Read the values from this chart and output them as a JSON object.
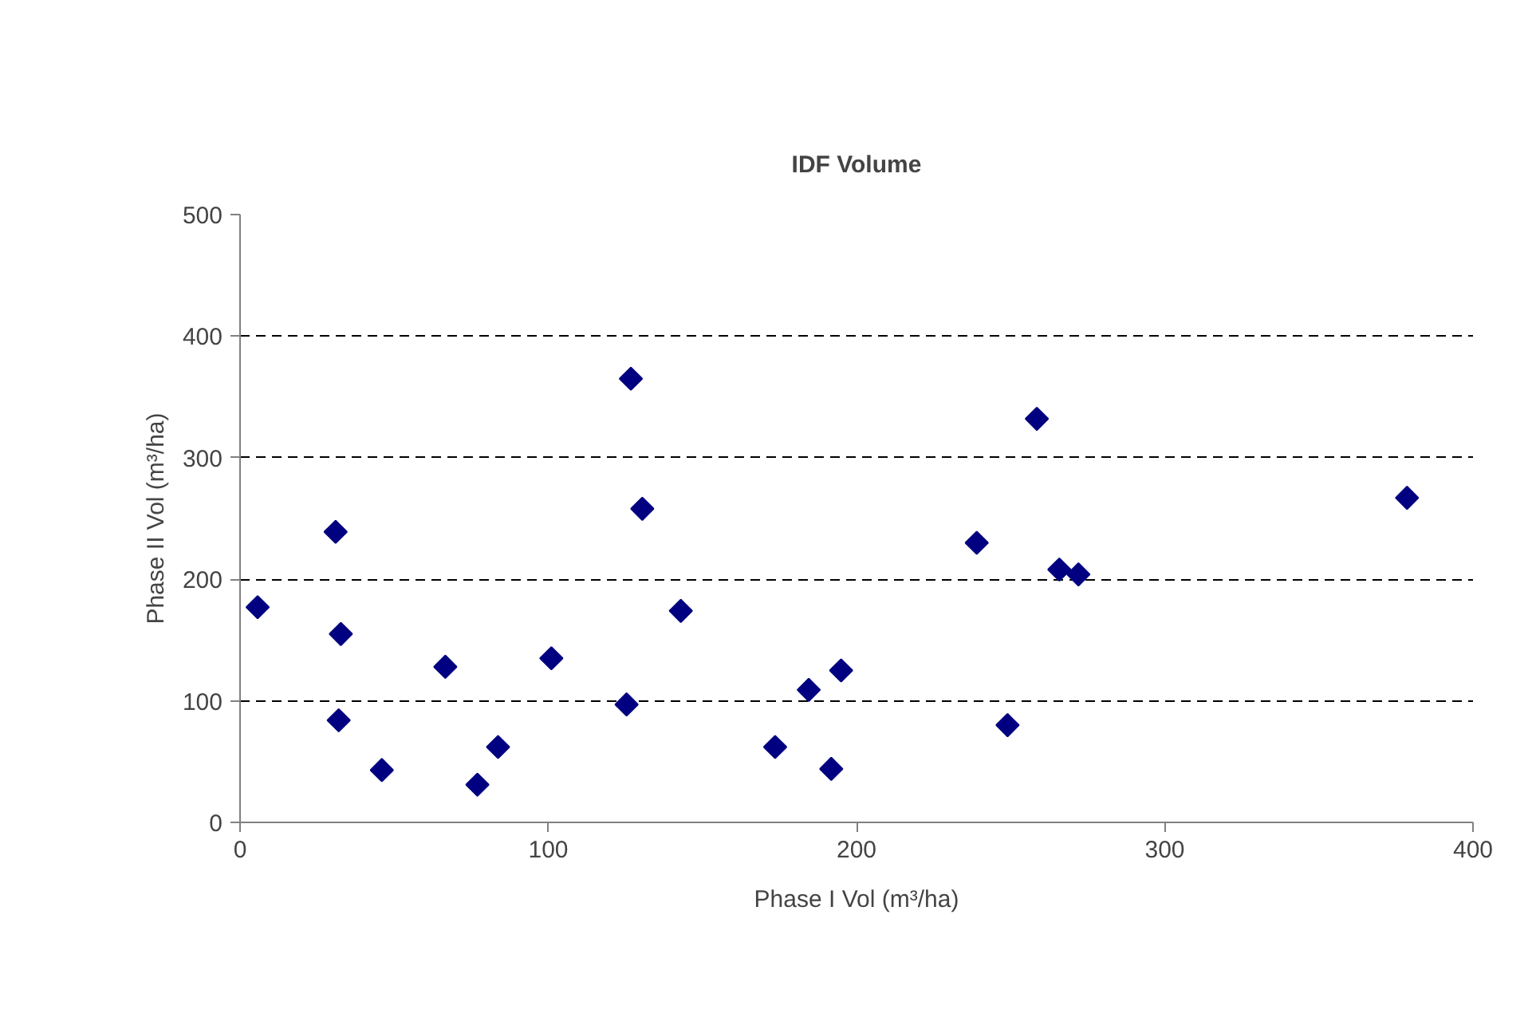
{
  "chart_data": {
    "type": "scatter",
    "title": "IDF Volume",
    "xlabel": "Phase I Vol (m³/ha)",
    "ylabel": "Phase II Vol (m³/ha)",
    "x": [
      5.7,
      31,
      32.7,
      32,
      46,
      66.6,
      77,
      83.7,
      101,
      126.8,
      130.5,
      125.4,
      143,
      173.6,
      184.5,
      191.8,
      195,
      239,
      258.5,
      249,
      265.8,
      272,
      378.6
    ],
    "values": [
      177,
      239,
      155,
      84,
      43,
      128,
      31,
      62,
      135,
      365,
      258,
      97,
      174,
      62,
      109,
      44,
      125,
      230,
      332,
      80,
      208,
      204,
      267
    ],
    "color": "#000080",
    "marker": "diamond",
    "xlim": [
      0,
      400
    ],
    "ylim": [
      0,
      500
    ],
    "xticks": [
      0,
      100,
      200,
      300,
      400
    ],
    "yticks": [
      0,
      100,
      200,
      300,
      400,
      500
    ],
    "grid": "y"
  }
}
